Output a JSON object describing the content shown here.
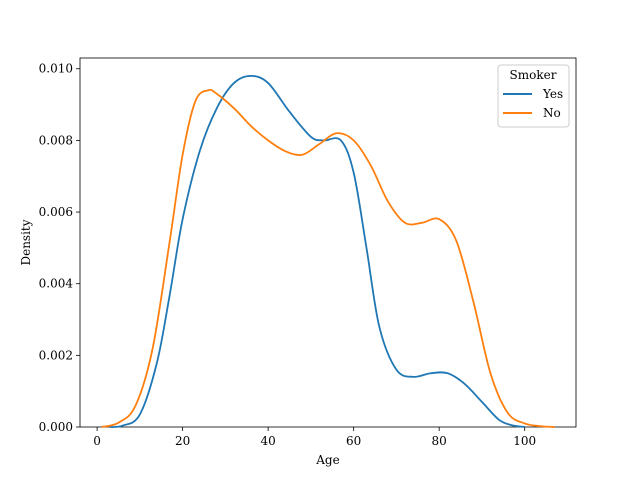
{
  "chart_data": {
    "type": "line",
    "xlabel": "Age",
    "ylabel": "Density",
    "xlim": [
      -4,
      112
    ],
    "ylim": [
      0,
      0.0103
    ],
    "xticks": [
      0,
      20,
      40,
      60,
      80,
      100
    ],
    "xtick_labels": [
      "0",
      "20",
      "40",
      "60",
      "80",
      "100"
    ],
    "yticks": [
      0,
      0.002,
      0.004,
      0.006,
      0.008,
      0.01
    ],
    "ytick_labels": [
      "0.000",
      "0.002",
      "0.004",
      "0.006",
      "0.008",
      "0.010"
    ],
    "grid": false,
    "legend": {
      "title": "Smoker",
      "placement": "top-right"
    },
    "series": [
      {
        "name": "Yes",
        "color": "#1f77b4",
        "x": [
          3,
          6,
          10,
          14,
          17,
          20,
          24,
          28,
          32,
          36,
          40,
          45,
          50,
          53,
          57,
          60,
          63,
          66,
          70,
          74,
          78,
          82,
          86,
          90,
          94,
          97,
          100
        ],
        "y": [
          0,
          4e-05,
          0.00035,
          0.0018,
          0.0037,
          0.0058,
          0.0077,
          0.0089,
          0.0096,
          0.0098,
          0.0096,
          0.0088,
          0.0081,
          0.008,
          0.008,
          0.0071,
          0.005,
          0.0028,
          0.0016,
          0.0014,
          0.0015,
          0.0015,
          0.0012,
          0.0007,
          0.0002,
          5e-05,
          0
        ]
      },
      {
        "name": "No",
        "color": "#ff7f0e",
        "x": [
          1,
          5,
          9,
          13,
          17,
          20,
          23,
          26,
          28,
          32,
          36,
          40,
          44,
          48,
          52,
          56,
          60,
          64,
          68,
          72,
          76,
          80,
          84,
          88,
          92,
          96,
          100,
          104,
          107
        ],
        "y": [
          0,
          0.00012,
          0.0006,
          0.0022,
          0.0052,
          0.0076,
          0.0091,
          0.0094,
          0.0093,
          0.0089,
          0.0084,
          0.008,
          0.0077,
          0.0076,
          0.0079,
          0.0082,
          0.008,
          0.0073,
          0.0063,
          0.0057,
          0.0057,
          0.0058,
          0.0052,
          0.0035,
          0.0015,
          0.0004,
          0.0001,
          2e-05,
          0
        ]
      }
    ]
  }
}
